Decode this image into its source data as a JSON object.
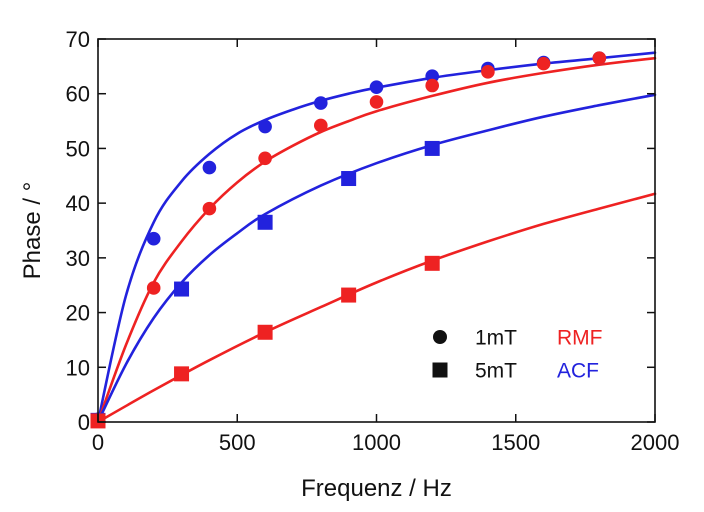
{
  "chart_data": {
    "type": "scatter",
    "xlabel": "Frequenz / Hz",
    "ylabel": "Phase / °",
    "xlim": [
      0,
      2000
    ],
    "ylim": [
      0,
      70
    ],
    "xticks": [
      0,
      500,
      1000,
      1500,
      2000
    ],
    "yticks": [
      0,
      10,
      20,
      30,
      40,
      50,
      60,
      70
    ],
    "grid": false,
    "legend": {
      "placement": "bottom-right",
      "markers": [
        {
          "symbol": "circle",
          "label": "1mT"
        },
        {
          "symbol": "square",
          "label": "5mT"
        }
      ],
      "methods": [
        {
          "label": "RMF",
          "color": "#ee2222"
        },
        {
          "label": "ACF",
          "color": "#2222dd"
        }
      ]
    },
    "series": [
      {
        "marker": "circle",
        "color": "#2222dd",
        "points": [
          [
            0,
            0.5
          ],
          [
            200,
            33.5
          ],
          [
            400,
            46.5
          ],
          [
            600,
            54
          ],
          [
            800,
            58.3
          ],
          [
            1000,
            61.2
          ],
          [
            1200,
            63.2
          ],
          [
            1400,
            64.6
          ],
          [
            1600,
            65.7
          ],
          [
            1800,
            66.5
          ]
        ],
        "fit": [
          [
            0,
            0
          ],
          [
            100,
            23
          ],
          [
            200,
            36.5
          ],
          [
            300,
            44
          ],
          [
            400,
            49
          ],
          [
            500,
            52.7
          ],
          [
            600,
            55.2
          ],
          [
            700,
            57.1
          ],
          [
            800,
            58.7
          ],
          [
            900,
            60
          ],
          [
            1000,
            61.1
          ],
          [
            1200,
            62.9
          ],
          [
            1400,
            64.3
          ],
          [
            1600,
            65.5
          ],
          [
            1800,
            66.5
          ],
          [
            2000,
            67.5
          ]
        ]
      },
      {
        "marker": "circle",
        "color": "#ee2222",
        "points": [
          [
            0,
            0.3
          ],
          [
            200,
            24.5
          ],
          [
            400,
            39
          ],
          [
            600,
            48.2
          ],
          [
            800,
            54.2
          ],
          [
            1000,
            58.5
          ],
          [
            1200,
            61.5
          ],
          [
            1400,
            64
          ],
          [
            1600,
            65.5
          ],
          [
            1800,
            66.5
          ]
        ],
        "fit": [
          [
            0,
            0
          ],
          [
            100,
            14
          ],
          [
            200,
            25.5
          ],
          [
            300,
            33
          ],
          [
            400,
            39
          ],
          [
            500,
            43.8
          ],
          [
            600,
            47.6
          ],
          [
            700,
            50.5
          ],
          [
            800,
            53
          ],
          [
            900,
            55
          ],
          [
            1000,
            56.8
          ],
          [
            1200,
            59.6
          ],
          [
            1400,
            62
          ],
          [
            1600,
            63.8
          ],
          [
            1800,
            65.3
          ],
          [
            2000,
            66.5
          ]
        ]
      },
      {
        "marker": "square",
        "color": "#2222dd",
        "points": [
          [
            0,
            0.3
          ],
          [
            300,
            24.3
          ],
          [
            600,
            36.5
          ],
          [
            900,
            44.5
          ],
          [
            1200,
            50
          ]
        ],
        "fit": [
          [
            0,
            0
          ],
          [
            100,
            10.5
          ],
          [
            200,
            19
          ],
          [
            300,
            25.5
          ],
          [
            400,
            30.5
          ],
          [
            500,
            34.5
          ],
          [
            600,
            38
          ],
          [
            800,
            43.2
          ],
          [
            1000,
            47.3
          ],
          [
            1200,
            50.6
          ],
          [
            1400,
            53.3
          ],
          [
            1600,
            55.8
          ],
          [
            1800,
            57.9
          ],
          [
            2000,
            59.8
          ]
        ]
      },
      {
        "marker": "square",
        "color": "#ee2222",
        "points": [
          [
            0,
            0.2
          ],
          [
            300,
            8.8
          ],
          [
            600,
            16.4
          ],
          [
            900,
            23.2
          ],
          [
            1200,
            29
          ]
        ],
        "fit": [
          [
            0,
            0
          ],
          [
            200,
            5.8
          ],
          [
            400,
            11.3
          ],
          [
            600,
            16.4
          ],
          [
            800,
            21
          ],
          [
            1000,
            25.5
          ],
          [
            1200,
            29.5
          ],
          [
            1400,
            33
          ],
          [
            1600,
            36.2
          ],
          [
            1800,
            39
          ],
          [
            2000,
            41.7
          ]
        ]
      }
    ]
  }
}
